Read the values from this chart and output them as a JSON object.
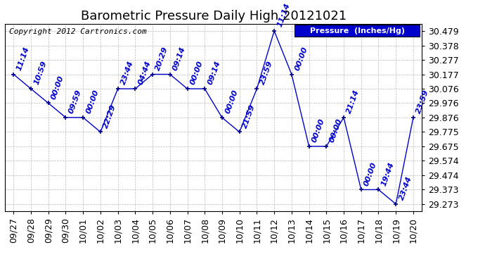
{
  "title": "Barometric Pressure Daily High 20121021",
  "copyright": "Copyright 2012 Cartronics.com",
  "line_color": "#0000cc",
  "marker_color": "#000088",
  "background_color": "#ffffff",
  "grid_color": "#bbbbbb",
  "legend_bg": "#0000cc",
  "legend_text": "Pressure  (Inches/Hg)",
  "ylim_min": 29.223,
  "ylim_max": 30.529,
  "yticks": [
    29.273,
    29.373,
    29.474,
    29.574,
    29.675,
    29.775,
    29.876,
    29.976,
    30.076,
    30.177,
    30.277,
    30.378,
    30.479
  ],
  "dates": [
    "09/27",
    "09/28",
    "09/29",
    "09/30",
    "10/01",
    "10/02",
    "10/03",
    "10/04",
    "10/05",
    "10/06",
    "10/07",
    "10/08",
    "10/09",
    "10/10",
    "10/11",
    "10/12",
    "10/13",
    "10/14",
    "10/15",
    "10/16",
    "10/17",
    "10/18",
    "10/19",
    "10/20"
  ],
  "values": [
    30.177,
    30.076,
    29.976,
    29.876,
    29.876,
    29.775,
    30.076,
    30.076,
    30.177,
    30.177,
    30.076,
    30.076,
    29.875,
    29.775,
    30.076,
    30.479,
    30.177,
    29.675,
    29.675,
    29.876,
    29.373,
    29.373,
    29.273,
    29.876
  ],
  "annotations": [
    "11:14",
    "10:59",
    "00:00",
    "09:59",
    "00:00",
    "22:29",
    "23:44",
    "04:44",
    "20:29",
    "09:14",
    "00:00",
    "09:14",
    "00:00",
    "21:59",
    "23:59",
    "11:14",
    "00:00",
    "00:00",
    "00:00",
    "21:14",
    "00:00",
    "19:44",
    "23:44",
    "23:59"
  ],
  "title_fontsize": 13,
  "tick_fontsize": 9,
  "annotation_fontsize": 8,
  "copyright_fontsize": 8,
  "fig_width": 6.9,
  "fig_height": 3.75,
  "dpi": 100
}
